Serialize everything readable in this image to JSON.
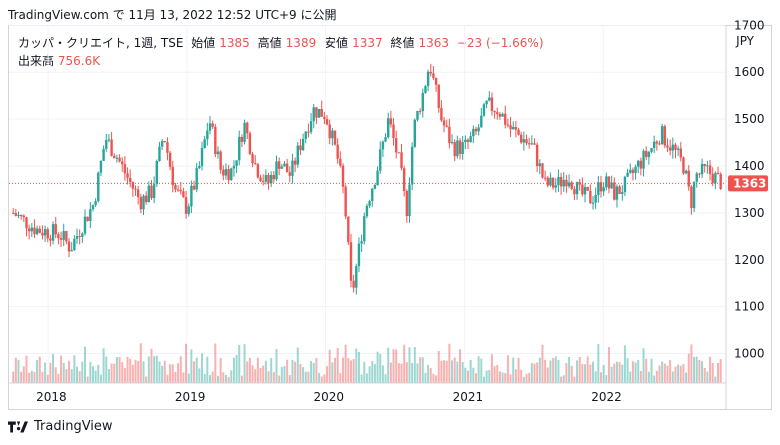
{
  "header": {
    "text": "TradingView.com で 11月 13, 2022 12:52 UTC+9 に公開"
  },
  "legend": {
    "symbol": "カッパ・クリエイト, 1週, TSE",
    "open_label": "始値",
    "open": "1385",
    "high_label": "高値",
    "high": "1389",
    "low_label": "安値",
    "low": "1337",
    "close_label": "終値",
    "close": "1363",
    "change": "−23 (−1.66%)",
    "volume_label": "出来高",
    "volume": "756.6K"
  },
  "currency": "JPY",
  "price_tag": "1363",
  "footer": {
    "brand": "TradingView"
  },
  "colors": {
    "up": "#26a69a",
    "down": "#ef5350",
    "grid": "#f0f3fa",
    "price_line": "#ef5350"
  },
  "chart_data": {
    "type": "candlestick",
    "symbol": "カッパ・クリエイト",
    "interval": "1週",
    "exchange": "TSE",
    "currency": "JPY",
    "y_ticks": [
      1000,
      1100,
      1200,
      1300,
      1400,
      1500,
      1600,
      1700
    ],
    "ylim": [
      950,
      1700
    ],
    "x_ticks": [
      "2018",
      "2019",
      "2020",
      "2021",
      "2022"
    ],
    "last_price": 1363,
    "grid": true,
    "price_anchors": [
      [
        "2017-10-01",
        1300
      ],
      [
        "2017-12-01",
        1265
      ],
      [
        "2018-02-01",
        1255
      ],
      [
        "2018-03-01",
        1225
      ],
      [
        "2018-04-01",
        1275
      ],
      [
        "2018-05-01",
        1320
      ],
      [
        "2018-06-01",
        1460
      ],
      [
        "2018-07-01",
        1420
      ],
      [
        "2018-08-01",
        1370
      ],
      [
        "2018-09-01",
        1325
      ],
      [
        "2018-10-01",
        1345
      ],
      [
        "2018-11-01",
        1470
      ],
      [
        "2018-12-01",
        1350
      ],
      [
        "2019-01-01",
        1310
      ],
      [
        "2019-02-01",
        1390
      ],
      [
        "2019-03-01",
        1500
      ],
      [
        "2019-04-01",
        1390
      ],
      [
        "2019-05-01",
        1390
      ],
      [
        "2019-06-01",
        1490
      ],
      [
        "2019-07-01",
        1400
      ],
      [
        "2019-08-01",
        1360
      ],
      [
        "2019-09-01",
        1410
      ],
      [
        "2019-10-01",
        1380
      ],
      [
        "2019-11-01",
        1460
      ],
      [
        "2019-12-01",
        1520
      ],
      [
        "2020-01-01",
        1510
      ],
      [
        "2020-02-01",
        1420
      ],
      [
        "2020-02-20",
        1330
      ],
      [
        "2020-03-10",
        1120
      ],
      [
        "2020-03-25",
        1200
      ],
      [
        "2020-04-15",
        1310
      ],
      [
        "2020-05-15",
        1390
      ],
      [
        "2020-06-15",
        1500
      ],
      [
        "2020-07-15",
        1400
      ],
      [
        "2020-08-01",
        1300
      ],
      [
        "2020-08-20",
        1480
      ],
      [
        "2020-09-15",
        1560
      ],
      [
        "2020-10-01",
        1620
      ],
      [
        "2020-11-01",
        1500
      ],
      [
        "2020-12-01",
        1440
      ],
      [
        "2021-01-01",
        1440
      ],
      [
        "2021-02-01",
        1470
      ],
      [
        "2021-03-01",
        1530
      ],
      [
        "2021-04-01",
        1520
      ],
      [
        "2021-05-01",
        1480
      ],
      [
        "2021-06-01",
        1460
      ],
      [
        "2021-07-01",
        1440
      ],
      [
        "2021-08-01",
        1360
      ],
      [
        "2021-09-01",
        1360
      ],
      [
        "2021-10-01",
        1380
      ],
      [
        "2021-11-01",
        1340
      ],
      [
        "2021-12-01",
        1330
      ],
      [
        "2022-01-01",
        1370
      ],
      [
        "2022-02-01",
        1340
      ],
      [
        "2022-03-01",
        1360
      ],
      [
        "2022-04-01",
        1400
      ],
      [
        "2022-05-01",
        1430
      ],
      [
        "2022-06-01",
        1470
      ],
      [
        "2022-07-01",
        1440
      ],
      [
        "2022-08-01",
        1400
      ],
      [
        "2022-08-20",
        1320
      ],
      [
        "2022-09-01",
        1380
      ],
      [
        "2022-10-01",
        1390
      ],
      [
        "2022-11-11",
        1363
      ]
    ],
    "volume_note": "weekly volume bars at bottom (thousands)",
    "last_volume_k": 756.6
  }
}
